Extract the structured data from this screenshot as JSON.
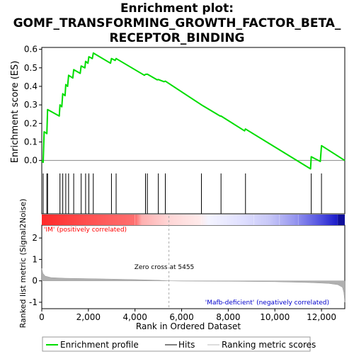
{
  "title_lines": [
    "Enrichment plot:",
    "GOMF_TRANSFORMING_GROWTH_FACTOR_BETA_",
    "RECEPTOR_BINDING"
  ],
  "colors": {
    "enrichment_line": "#00dd00",
    "hits": "#000000",
    "metric_fill": "#b0b0b0",
    "zero_cross": "#aaaaaa",
    "pos_label": "#ff0000",
    "neg_label": "#0000cc",
    "heat_positive": "#ff3030",
    "heat_negative": "#2020cc"
  },
  "chart_data": {
    "type": "line",
    "xlabel": "Rank in Ordered Dataset",
    "x_ticks": [
      0,
      2000,
      4000,
      6000,
      8000,
      10000,
      12000
    ],
    "x_tick_labels": [
      "0",
      "2,000",
      "4,000",
      "6,000",
      "8,000",
      "10,000",
      "12,000"
    ],
    "xlim": [
      0,
      13000
    ],
    "top_panel": {
      "ylabel": "Enrichment score (ES)",
      "ylim": [
        -0.07,
        0.61
      ],
      "y_ticks": [
        0.0,
        0.1,
        0.2,
        0.3,
        0.4,
        0.5,
        0.6
      ],
      "y_tick_labels": [
        "0.0",
        "0.1",
        "0.2",
        "0.3",
        "0.4",
        "0.5",
        "0.6"
      ],
      "es_profile": [
        [
          0,
          0.0
        ],
        [
          60,
          -0.01
        ],
        [
          100,
          0.155
        ],
        [
          220,
          0.145
        ],
        [
          250,
          0.275
        ],
        [
          750,
          0.24
        ],
        [
          780,
          0.3
        ],
        [
          860,
          0.29
        ],
        [
          900,
          0.36
        ],
        [
          1000,
          0.35
        ],
        [
          1030,
          0.41
        ],
        [
          1110,
          0.4
        ],
        [
          1150,
          0.46
        ],
        [
          1330,
          0.445
        ],
        [
          1370,
          0.49
        ],
        [
          1650,
          0.47
        ],
        [
          1690,
          0.51
        ],
        [
          1850,
          0.5
        ],
        [
          1880,
          0.535
        ],
        [
          1980,
          0.525
        ],
        [
          2020,
          0.56
        ],
        [
          2170,
          0.55
        ],
        [
          2210,
          0.58
        ],
        [
          2950,
          0.525
        ],
        [
          2990,
          0.55
        ],
        [
          3150,
          0.54
        ],
        [
          3190,
          0.55
        ],
        [
          4400,
          0.46
        ],
        [
          4450,
          0.465
        ],
        [
          4530,
          0.466
        ],
        [
          4950,
          0.435
        ],
        [
          5000,
          0.437
        ],
        [
          5250,
          0.425
        ],
        [
          5300,
          0.428
        ],
        [
          6850,
          0.3
        ],
        [
          7650,
          0.24
        ],
        [
          7690,
          0.24
        ],
        [
          8700,
          0.16
        ],
        [
          8740,
          0.17
        ],
        [
          11530,
          -0.045
        ],
        [
          11560,
          0.02
        ],
        [
          11950,
          -0.005
        ],
        [
          12000,
          0.08
        ],
        [
          13000,
          0.0
        ]
      ]
    },
    "hits": [
      60,
      220,
      250,
      780,
      900,
      1030,
      1150,
      1370,
      1690,
      1880,
      2020,
      2210,
      2990,
      3190,
      4450,
      4530,
      5000,
      5300,
      6850,
      7690,
      8740,
      11560,
      12000
    ],
    "bottom_panel": {
      "ylabel": "Ranked list metric (Signal2Noise)",
      "ylim": [
        -1.3,
        2.6
      ],
      "y_ticks": [
        -1,
        0,
        1,
        2
      ],
      "y_tick_labels": [
        "-1",
        "0",
        "1",
        "2"
      ],
      "metric_curve": [
        [
          0,
          0.58
        ],
        [
          50,
          0.35
        ],
        [
          150,
          0.22
        ],
        [
          400,
          0.15
        ],
        [
          1000,
          0.12
        ],
        [
          2000,
          0.1
        ],
        [
          3000,
          0.08
        ],
        [
          4000,
          0.06
        ],
        [
          5000,
          0.03
        ],
        [
          5455,
          0.0
        ],
        [
          6000,
          -0.01
        ],
        [
          8000,
          -0.02
        ],
        [
          10000,
          -0.04
        ],
        [
          11500,
          -0.08
        ],
        [
          12300,
          -0.12
        ],
        [
          12700,
          -0.18
        ],
        [
          12900,
          -0.3
        ],
        [
          12960,
          -0.55
        ],
        [
          13000,
          -1.0
        ]
      ],
      "zero_cross": 5455,
      "zero_cross_label": "Zero cross at 5455",
      "pos_label": "'IM' (positively correlated)",
      "neg_label": "'Mafb-deficient' (negatively correlated)"
    },
    "legend": {
      "placement": "bottom",
      "items": [
        "Enrichment profile",
        "Hits",
        "Ranking metric scores"
      ]
    }
  }
}
